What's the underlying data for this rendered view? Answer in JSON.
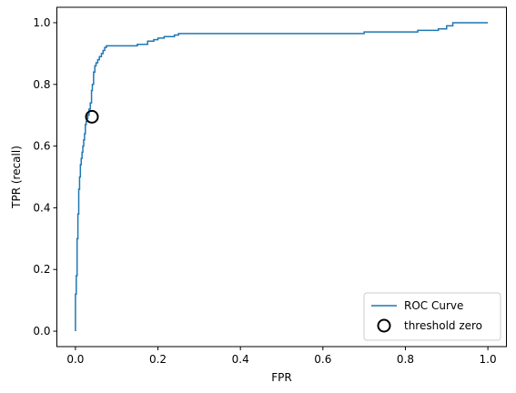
{
  "chart_data": {
    "type": "line",
    "xlabel": "FPR",
    "ylabel": "TPR (recall)",
    "xlim": [
      -0.045,
      1.045
    ],
    "ylim": [
      -0.05,
      1.05
    ],
    "xticks": [
      0.0,
      0.2,
      0.4,
      0.6,
      0.8,
      1.0
    ],
    "xtick_labels": [
      "0.0",
      "0.2",
      "0.4",
      "0.6",
      "0.8",
      "1.0"
    ],
    "yticks": [
      0.0,
      0.2,
      0.4,
      0.6,
      0.8,
      1.0
    ],
    "ytick_labels": [
      "0.0",
      "0.2",
      "0.4",
      "0.6",
      "0.8",
      "1.0"
    ],
    "grid": false,
    "legend_position": "lower right",
    "series": [
      {
        "name": "ROC Curve",
        "kind": "step-line",
        "color": "#1f77b4",
        "x": [
          0.0,
          0.0,
          0.002,
          0.002,
          0.004,
          0.004,
          0.006,
          0.006,
          0.008,
          0.008,
          0.01,
          0.01,
          0.012,
          0.012,
          0.014,
          0.014,
          0.016,
          0.016,
          0.018,
          0.018,
          0.02,
          0.02,
          0.022,
          0.022,
          0.024,
          0.024,
          0.026,
          0.026,
          0.028,
          0.028,
          0.03,
          0.03,
          0.033,
          0.033,
          0.036,
          0.036,
          0.039,
          0.039,
          0.041,
          0.041,
          0.044,
          0.044,
          0.047,
          0.047,
          0.05,
          0.05,
          0.054,
          0.054,
          0.058,
          0.058,
          0.063,
          0.063,
          0.067,
          0.067,
          0.071,
          0.071,
          0.075,
          0.075,
          0.15,
          0.15,
          0.175,
          0.175,
          0.19,
          0.19,
          0.2,
          0.2,
          0.215,
          0.215,
          0.24,
          0.24,
          0.25,
          0.25,
          0.7,
          0.7,
          0.83,
          0.83,
          0.88,
          0.88,
          0.9,
          0.9,
          0.915,
          0.915,
          1.0
        ],
        "y": [
          0.0,
          0.12,
          0.12,
          0.18,
          0.18,
          0.3,
          0.3,
          0.38,
          0.38,
          0.46,
          0.46,
          0.5,
          0.5,
          0.54,
          0.54,
          0.56,
          0.56,
          0.58,
          0.58,
          0.6,
          0.6,
          0.62,
          0.62,
          0.64,
          0.64,
          0.67,
          0.67,
          0.68,
          0.68,
          0.69,
          0.69,
          0.7,
          0.7,
          0.72,
          0.72,
          0.74,
          0.74,
          0.78,
          0.78,
          0.8,
          0.8,
          0.84,
          0.84,
          0.86,
          0.86,
          0.87,
          0.87,
          0.88,
          0.88,
          0.89,
          0.89,
          0.9,
          0.9,
          0.91,
          0.91,
          0.92,
          0.92,
          0.925,
          0.925,
          0.93,
          0.93,
          0.94,
          0.94,
          0.945,
          0.945,
          0.95,
          0.95,
          0.955,
          0.955,
          0.96,
          0.96,
          0.965,
          0.965,
          0.97,
          0.97,
          0.975,
          0.975,
          0.98,
          0.98,
          0.99,
          0.99,
          1.0,
          1.0
        ]
      },
      {
        "name": "threshold zero",
        "kind": "marker",
        "marker": "open-circle",
        "color": "#000000",
        "x": [
          0.04
        ],
        "y": [
          0.695
        ]
      }
    ]
  }
}
